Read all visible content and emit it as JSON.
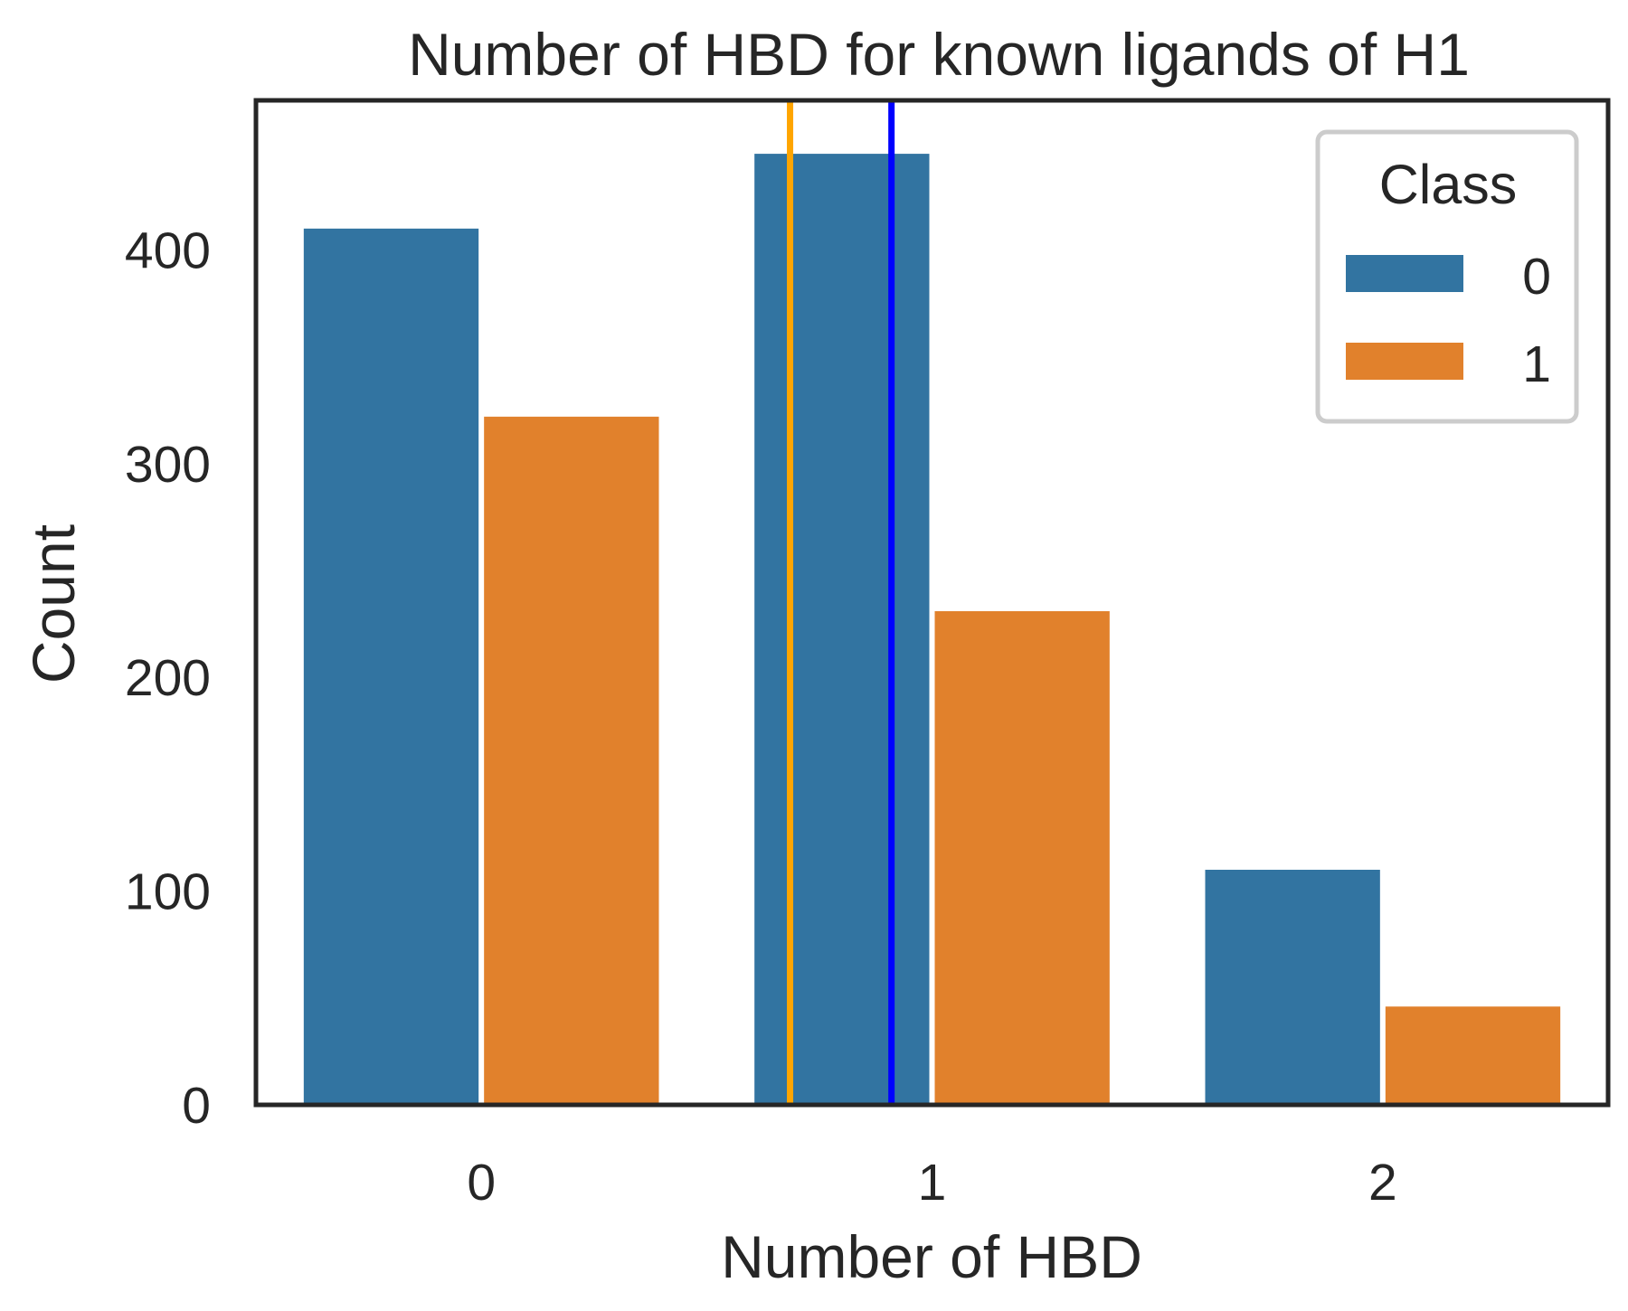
{
  "chart_data": {
    "type": "bar",
    "title": "Number of HBD for known ligands of H1",
    "xlabel": "Number of HBD",
    "ylabel": "Count",
    "categories": [
      "0",
      "1",
      "2"
    ],
    "series": [
      {
        "name": "0",
        "color": "#3274a1",
        "values": [
          410,
          445,
          110
        ]
      },
      {
        "name": "1",
        "color": "#e1812c",
        "values": [
          322,
          231,
          46
        ]
      }
    ],
    "ylim": [
      0,
      470
    ],
    "yticks": [
      0,
      100,
      200,
      300,
      400
    ],
    "xticks": [
      "0",
      "1",
      "2"
    ],
    "reference_lines": [
      {
        "x": 0.685,
        "color": "#ffa500"
      },
      {
        "x": 0.91,
        "color": "#0000ff"
      }
    ],
    "legend": {
      "title": "Class",
      "placement": "upper right",
      "entries": [
        "0",
        "1"
      ]
    },
    "grid": false
  }
}
